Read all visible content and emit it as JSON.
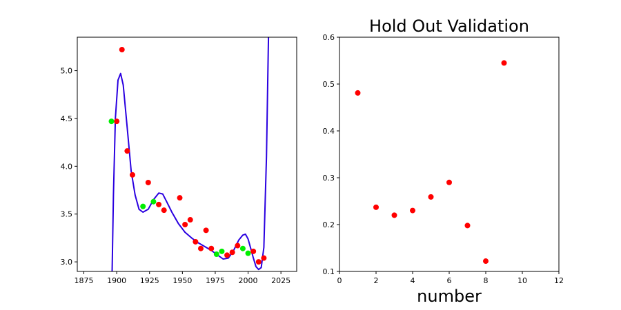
{
  "chart_data": [
    {
      "type": "scatter+line",
      "title": "",
      "xlabel": "",
      "ylabel": "",
      "xlim": [
        1870,
        2037
      ],
      "ylim": [
        2.9,
        5.35
      ],
      "xticks": [
        1875,
        1900,
        1925,
        1950,
        1975,
        2000,
        2025
      ],
      "xtick_labels": [
        "1875",
        "1900",
        "1925",
        "1950",
        "1975",
        "2000",
        "2025"
      ],
      "yticks": [
        3.0,
        3.5,
        4.0,
        4.5,
        5.0
      ],
      "ytick_labels": [
        "3.0",
        "3.5",
        "4.0",
        "4.5",
        "5.0"
      ],
      "grid": false,
      "legend": "none",
      "colors": {
        "train": "#ff0000",
        "holdout": "#00ee00",
        "fit": "#2a00e0"
      },
      "series": [
        {
          "role": "train",
          "marker": "circle",
          "color": "#ff0000",
          "points": [
            [
              1900,
              4.47
            ],
            [
              1904,
              5.22
            ],
            [
              1908,
              4.16
            ],
            [
              1912,
              3.91
            ],
            [
              1924,
              3.83
            ],
            [
              1932,
              3.6
            ],
            [
              1936,
              3.54
            ],
            [
              1948,
              3.67
            ],
            [
              1952,
              3.39
            ],
            [
              1956,
              3.44
            ],
            [
              1960,
              3.21
            ],
            [
              1964,
              3.14
            ],
            [
              1968,
              3.33
            ],
            [
              1972,
              3.14
            ],
            [
              1984,
              3.07
            ],
            [
              1988,
              3.1
            ],
            [
              1992,
              3.17
            ],
            [
              2004,
              3.11
            ],
            [
              2008,
              3.0
            ],
            [
              2012,
              3.04
            ]
          ]
        },
        {
          "role": "holdout",
          "marker": "circle",
          "color": "#00ee00",
          "points": [
            [
              1896,
              4.47
            ],
            [
              1920,
              3.58
            ],
            [
              1928,
              3.63
            ],
            [
              1976,
              3.08
            ],
            [
              1980,
              3.11
            ],
            [
              1996,
              3.14
            ],
            [
              2000,
              3.09
            ]
          ]
        },
        {
          "role": "fit",
          "style": "line",
          "color": "#2a00e0",
          "points": [
            [
              1896.5,
              2.9
            ],
            [
              1897.5,
              3.7
            ],
            [
              1899,
              4.5
            ],
            [
              1901,
              4.9
            ],
            [
              1903,
              4.97
            ],
            [
              1905,
              4.85
            ],
            [
              1908,
              4.4
            ],
            [
              1911,
              3.95
            ],
            [
              1914,
              3.7
            ],
            [
              1917,
              3.55
            ],
            [
              1920,
              3.52
            ],
            [
              1924,
              3.55
            ],
            [
              1928,
              3.65
            ],
            [
              1932,
              3.72
            ],
            [
              1935,
              3.71
            ],
            [
              1938,
              3.63
            ],
            [
              1942,
              3.52
            ],
            [
              1947,
              3.4
            ],
            [
              1952,
              3.31
            ],
            [
              1957,
              3.25
            ],
            [
              1962,
              3.2
            ],
            [
              1967,
              3.16
            ],
            [
              1972,
              3.12
            ],
            [
              1977,
              3.07
            ],
            [
              1981,
              3.03
            ],
            [
              1985,
              3.04
            ],
            [
              1989,
              3.12
            ],
            [
              1993,
              3.23
            ],
            [
              1996,
              3.28
            ],
            [
              1998,
              3.29
            ],
            [
              2000,
              3.24
            ],
            [
              2002,
              3.14
            ],
            [
              2004,
              3.04
            ],
            [
              2006,
              2.95
            ],
            [
              2008,
              2.92
            ],
            [
              2010,
              2.94
            ],
            [
              2012,
              3.15
            ],
            [
              2014,
              4.1
            ],
            [
              2015.5,
              5.35
            ]
          ]
        }
      ]
    },
    {
      "type": "scatter",
      "title": "Hold Out Validation",
      "xlabel": "number",
      "ylabel": "",
      "xlim": [
        0,
        12
      ],
      "ylim": [
        0.1,
        0.6
      ],
      "xticks": [
        0,
        2,
        4,
        6,
        8,
        10,
        12
      ],
      "xtick_labels": [
        "0",
        "2",
        "4",
        "6",
        "8",
        "10",
        "12"
      ],
      "yticks": [
        0.1,
        0.2,
        0.3,
        0.4,
        0.5,
        0.6
      ],
      "ytick_labels": [
        "0.1",
        "0.2",
        "0.3",
        "0.4",
        "0.5",
        "0.6"
      ],
      "grid": false,
      "legend": "none",
      "series": [
        {
          "marker": "circle",
          "color": "#ff0000",
          "x": [
            1,
            2,
            3,
            4,
            5,
            6,
            7,
            8,
            9
          ],
          "y": [
            0.481,
            0.237,
            0.22,
            0.23,
            0.259,
            0.29,
            0.198,
            0.122,
            0.545
          ]
        }
      ]
    }
  ]
}
